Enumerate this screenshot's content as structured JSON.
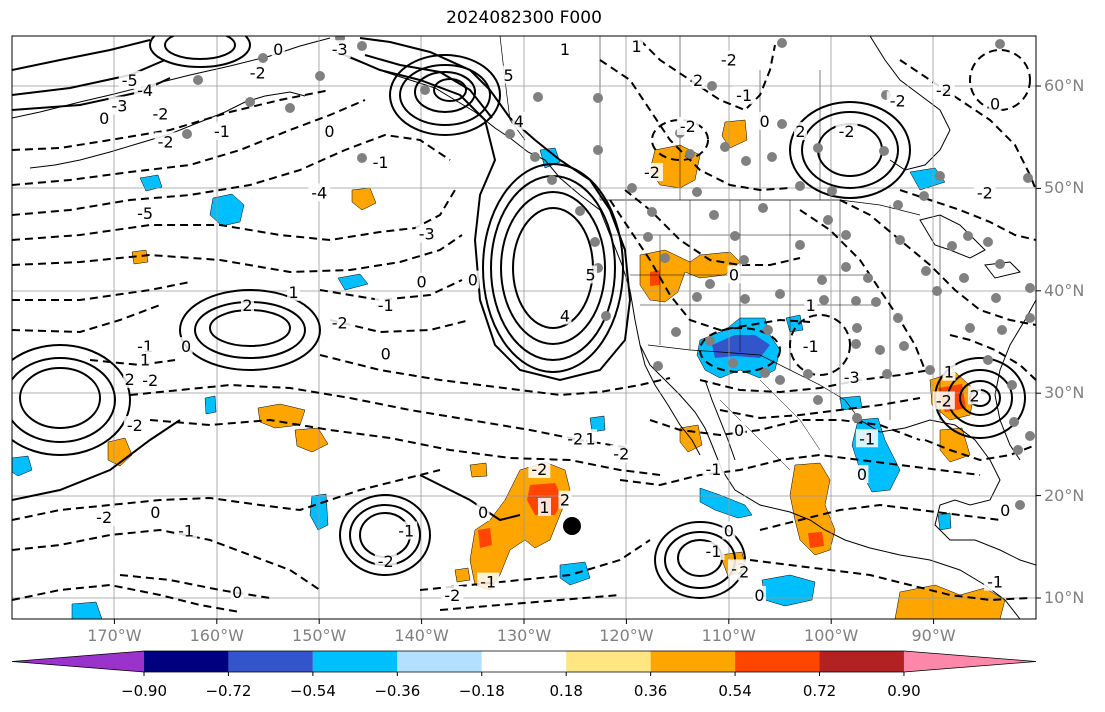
{
  "title": "2024082300 F000",
  "lat_labels": [
    {
      "text": "60°N",
      "lat": 60
    },
    {
      "text": "50°N",
      "lat": 50
    },
    {
      "text": "40°N",
      "lat": 40
    },
    {
      "text": "30°N",
      "lat": 30
    },
    {
      "text": "20°N",
      "lat": 20
    },
    {
      "text": "10°N",
      "lat": 10
    }
  ],
  "lon_labels": [
    {
      "text": "170°W",
      "lon": -170
    },
    {
      "text": "160°W",
      "lon": -160
    },
    {
      "text": "150°W",
      "lon": -150
    },
    {
      "text": "140°W",
      "lon": -140
    },
    {
      "text": "130°W",
      "lon": -130
    },
    {
      "text": "120°W",
      "lon": -120
    },
    {
      "text": "110°W",
      "lon": -110
    },
    {
      "text": "100°W",
      "lon": -100
    },
    {
      "text": "90°W",
      "lon": -90
    }
  ],
  "colorbar": {
    "colors": [
      "#9933cc",
      "#000080",
      "#3355cc",
      "#00bfff",
      "#b3e0ff",
      "#ffffff",
      "#ffe680",
      "#ffa500",
      "#ff4500",
      "#b22222",
      "#ff88aa"
    ],
    "labels": [
      "−0.90",
      "−0.72",
      "−0.54",
      "−0.36",
      "−0.18",
      "0.18",
      "0.36",
      "0.54",
      "0.72",
      "0.90"
    ]
  },
  "contour_labels": [
    {
      "text": "5",
      "lon": -131.5,
      "lat": 61
    },
    {
      "text": "4",
      "lon": -130.5,
      "lat": 56.5
    },
    {
      "text": "5",
      "lon": -123.5,
      "lat": 41.5
    },
    {
      "text": "4",
      "lon": -126,
      "lat": 37.5
    },
    {
      "text": "-4",
      "lon": -167,
      "lat": 59.5
    },
    {
      "text": "-5",
      "lon": -168.5,
      "lat": 60.5
    },
    {
      "text": "-3",
      "lon": -169.5,
      "lat": 58
    },
    {
      "text": "-2",
      "lon": -165.5,
      "lat": 57.2
    },
    {
      "text": "-1",
      "lon": -159.5,
      "lat": 55.5
    },
    {
      "text": "0",
      "lon": -171,
      "lat": 56.8
    },
    {
      "text": "-2",
      "lon": -165,
      "lat": 54.5
    },
    {
      "text": "-5",
      "lon": -167,
      "lat": 47.5
    },
    {
      "text": "-3",
      "lon": -139.5,
      "lat": 45.5
    },
    {
      "text": "0",
      "lon": -140,
      "lat": 40.8
    },
    {
      "text": "-1",
      "lon": -143.5,
      "lat": 38.5
    },
    {
      "text": "-2",
      "lon": -148,
      "lat": 36.8
    },
    {
      "text": "0",
      "lon": -143.5,
      "lat": 33.8
    },
    {
      "text": "-1",
      "lon": -167,
      "lat": 34.5
    },
    {
      "text": "0",
      "lon": -163,
      "lat": 34.5
    },
    {
      "text": "-2",
      "lon": -166.5,
      "lat": 31.2
    },
    {
      "text": "-2",
      "lon": -168,
      "lat": 26.8
    },
    {
      "text": "-2",
      "lon": -125,
      "lat": 25.5
    },
    {
      "text": "-2",
      "lon": -128.5,
      "lat": 22.5
    },
    {
      "text": "-2",
      "lon": -120.5,
      "lat": 24
    },
    {
      "text": "-1",
      "lon": -111.5,
      "lat": 22.5
    },
    {
      "text": "-1",
      "lon": -96.5,
      "lat": 25.5
    },
    {
      "text": "-3",
      "lon": -98,
      "lat": 31.5
    },
    {
      "text": "0",
      "lon": -97,
      "lat": 22
    },
    {
      "text": "-2",
      "lon": -89,
      "lat": 29.2
    },
    {
      "text": "-2",
      "lon": -117.5,
      "lat": 51.5
    },
    {
      "text": "-2",
      "lon": -114,
      "lat": 56
    },
    {
      "text": "0",
      "lon": -106.5,
      "lat": 56.5
    },
    {
      "text": "0",
      "lon": -109.5,
      "lat": 41.5
    },
    {
      "text": "-1",
      "lon": -102,
      "lat": 34.5
    },
    {
      "text": "-2",
      "lon": -98.5,
      "lat": 55.5
    },
    {
      "text": "-2",
      "lon": -93.5,
      "lat": 58.5
    },
    {
      "text": "-2",
      "lon": -89,
      "lat": 59.5
    },
    {
      "text": "-2",
      "lon": -85,
      "lat": 49.5
    },
    {
      "text": "0",
      "lon": -135,
      "lat": 41
    },
    {
      "text": "0",
      "lon": -149,
      "lat": 55.5
    },
    {
      "text": "-1",
      "lon": -144,
      "lat": 52.5
    },
    {
      "text": "-4",
      "lon": -150,
      "lat": 49.5
    },
    {
      "text": "-2",
      "lon": -171,
      "lat": 17.8
    },
    {
      "text": "-1",
      "lon": -163,
      "lat": 16.5
    },
    {
      "text": "-1",
      "lon": -141.5,
      "lat": 16.5
    },
    {
      "text": "0",
      "lon": -166,
      "lat": 18.3
    },
    {
      "text": "-2",
      "lon": -143.5,
      "lat": 13.5
    },
    {
      "text": "0",
      "lon": -158,
      "lat": 10.5
    },
    {
      "text": "-1",
      "lon": -133.5,
      "lat": 11.5
    },
    {
      "text": "-2",
      "lon": -137,
      "lat": 10.2
    },
    {
      "text": "0",
      "lon": -134,
      "lat": 18.3
    },
    {
      "text": "0",
      "lon": -107,
      "lat": 10.2
    },
    {
      "text": "-1",
      "lon": -111.5,
      "lat": 14.5
    },
    {
      "text": "-2",
      "lon": -109,
      "lat": 12.8
    },
    {
      "text": "0",
      "lon": -109,
      "lat": 26.3
    },
    {
      "text": "0",
      "lon": -154,
      "lat": 63.5
    },
    {
      "text": "-3",
      "lon": -148,
      "lat": 63.5
    },
    {
      "text": "-2",
      "lon": -156,
      "lat": 61.2
    },
    {
      "text": "1",
      "lon": -167,
      "lat": 33.2
    },
    {
      "text": "2",
      "lon": -157,
      "lat": 38.5
    },
    {
      "text": "1",
      "lon": -152.5,
      "lat": 39.8
    },
    {
      "text": "2",
      "lon": -168.5,
      "lat": 31.3
    },
    {
      "text": "1",
      "lon": -128,
      "lat": 18.8
    },
    {
      "text": "2",
      "lon": -126,
      "lat": 19.5
    },
    {
      "text": "2",
      "lon": -108.5,
      "lat": 12.5
    },
    {
      "text": "1",
      "lon": -123.5,
      "lat": 25.5
    },
    {
      "text": "0",
      "lon": -110,
      "lat": 16.5
    },
    {
      "text": "2",
      "lon": -86,
      "lat": 29.7
    },
    {
      "text": "1",
      "lon": -88.5,
      "lat": 32
    },
    {
      "text": "0",
      "lon": -83,
      "lat": 18.5
    },
    {
      "text": "-1",
      "lon": -84,
      "lat": 11.5
    },
    {
      "text": "0",
      "lon": -84,
      "lat": 58.2
    },
    {
      "text": "1",
      "lon": -126,
      "lat": 63.5
    },
    {
      "text": "2",
      "lon": -103,
      "lat": 55.5
    },
    {
      "text": "2",
      "lon": -113,
      "lat": 60.5
    },
    {
      "text": "1",
      "lon": -119,
      "lat": 63.8
    },
    {
      "text": "-2",
      "lon": -110,
      "lat": 62.5
    },
    {
      "text": "-1",
      "lon": -108.5,
      "lat": 59
    },
    {
      "text": "1",
      "lon": -102,
      "lat": 38.5
    }
  ]
}
